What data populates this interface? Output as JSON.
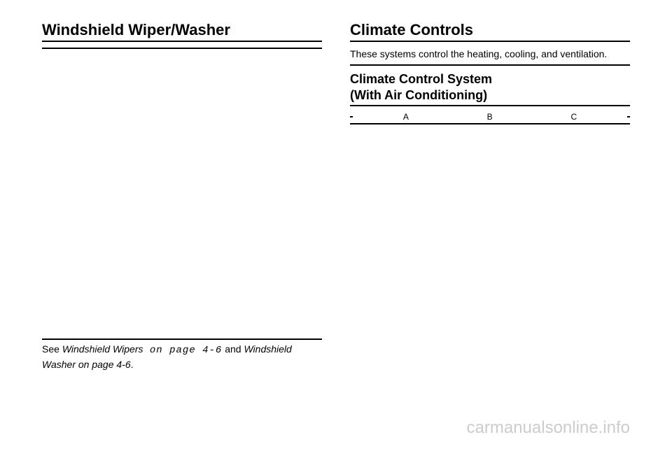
{
  "left": {
    "heading": "Windshield Wiper/Washer",
    "ref": {
      "prefix": "See ",
      "link1": "Windshield Wipers",
      "mid1": " on page 4-6",
      "and": " and ",
      "link2": "Windshield Washer",
      "mid2": " on page 4-6",
      "suffix": "."
    }
  },
  "right": {
    "heading": "Climate Controls",
    "body": "These systems control the heating, cooling, and ventilation.",
    "subheading_line1": "Climate Control System",
    "subheading_line2": "(With Air Conditioning)",
    "diagram_labels": [
      "A",
      "B",
      "C"
    ]
  },
  "watermark": "carmanualsonline.info",
  "colors": {
    "text": "#000000",
    "bg": "#ffffff",
    "watermark": "#cccccc",
    "rule": "#000000"
  }
}
